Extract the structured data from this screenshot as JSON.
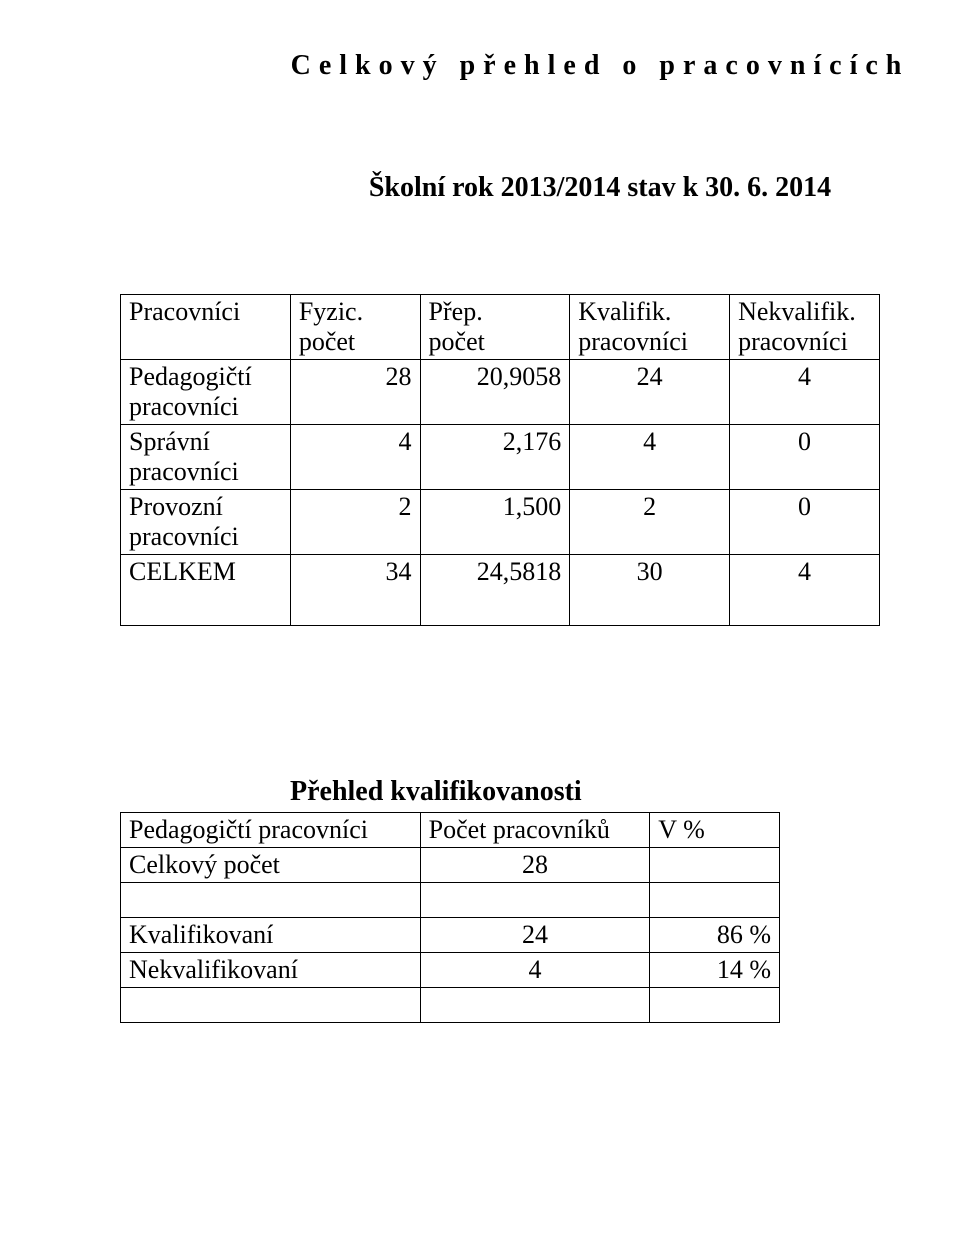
{
  "title": "Celkový přehled o pracovnících",
  "subtitle": "Školní rok 2013/2014 stav k 30. 6. 2014",
  "table1": {
    "col_widths": [
      "170px",
      "130px",
      "150px",
      "160px",
      "150px"
    ],
    "header": {
      "c0": "Pracovníci",
      "c1a": "Fyzic.",
      "c1b": "počet",
      "c2a": "Přep.",
      "c2b": "počet",
      "c3a": "Kvalifik.",
      "c3b": "pracovníci",
      "c4a": "Nekvalifik.",
      "c4b": "pracovníci"
    },
    "rows": [
      {
        "label_a": "Pedagogičtí",
        "label_b": "pracovníci",
        "v1": "28",
        "v2": "20,9058",
        "v3": "24",
        "v4": "4"
      },
      {
        "label_a": "Správní",
        "label_b": "pracovníci",
        "v1": "4",
        "v2": "2,176",
        "v3": "4",
        "v4": "0"
      },
      {
        "label_a": "Provozní",
        "label_b": "pracovníci",
        "v1": "2",
        "v2": "1,500",
        "v3": "2",
        "v4": "0"
      }
    ],
    "total": {
      "label": "CELKEM",
      "v1": "34",
      "v2": "24,5818",
      "v3": "30",
      "v4": "4"
    }
  },
  "section2_title": "Přehled   kvalifikovanosti",
  "table2": {
    "col_widths": [
      "300px",
      "230px",
      "130px"
    ],
    "header": {
      "c0": "Pedagogičtí pracovníci",
      "c1": "Počet pracovníků",
      "c2": "V     %"
    },
    "rows": [
      {
        "label": "Celkový počet",
        "v1": "28",
        "v2": ""
      },
      {
        "label": "Kvalifikovaní",
        "v1": "24",
        "v2": "86 %"
      },
      {
        "label": "Nekvalifikovaní",
        "v1": "4",
        "v2": "14 %"
      }
    ]
  }
}
